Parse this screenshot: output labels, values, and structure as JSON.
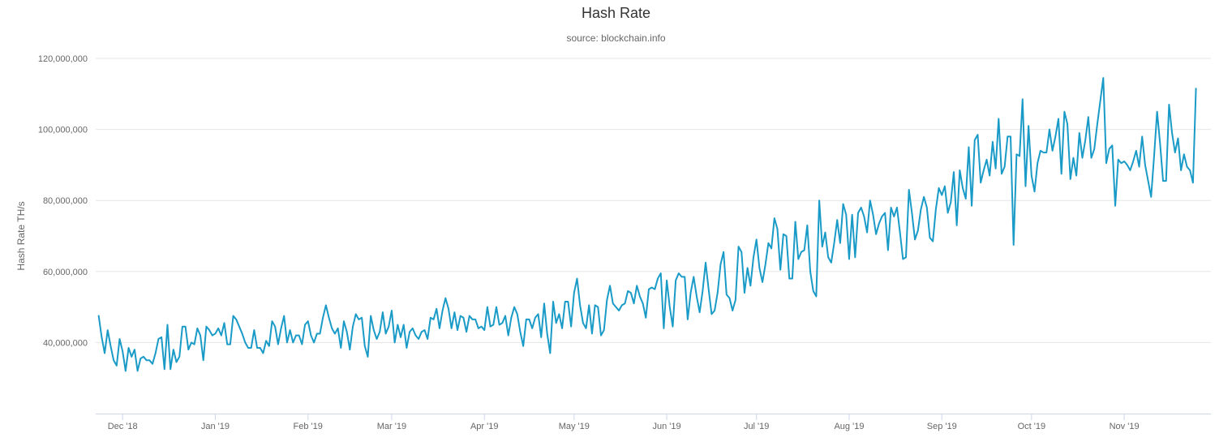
{
  "chart_data": {
    "type": "line",
    "title": "Hash Rate",
    "subtitle": "source: blockchain.info",
    "ylabel": "Hash Rate TH/s",
    "xlabel": "",
    "ylim": [
      20000000,
      120000000
    ],
    "y_ticks": [
      {
        "value": 40000000,
        "label": "40,000,000"
      },
      {
        "value": 60000000,
        "label": "60,000,000"
      },
      {
        "value": 80000000,
        "label": "80,000,000"
      },
      {
        "value": 100000000,
        "label": "100,000,000"
      },
      {
        "value": 120000000,
        "label": "120,000,000"
      }
    ],
    "x_ticks": [
      {
        "date": "2018-12-01",
        "label": "Dec '18"
      },
      {
        "date": "2019-01-01",
        "label": "Jan '19"
      },
      {
        "date": "2019-02-01",
        "label": "Feb '19"
      },
      {
        "date": "2019-03-01",
        "label": "Mar '19"
      },
      {
        "date": "2019-04-01",
        "label": "Apr '19"
      },
      {
        "date": "2019-05-01",
        "label": "May '19"
      },
      {
        "date": "2019-06-01",
        "label": "Jun '19"
      },
      {
        "date": "2019-07-01",
        "label": "Jul '19"
      },
      {
        "date": "2019-08-01",
        "label": "Aug '19"
      },
      {
        "date": "2019-09-01",
        "label": "Sep '19"
      },
      {
        "date": "2019-10-01",
        "label": "Oct '19"
      },
      {
        "date": "2019-11-01",
        "label": "Nov '19"
      }
    ],
    "xlim": [
      "2018-11-22",
      "2019-11-30"
    ],
    "grid": true,
    "legend": "none",
    "colors": {
      "line": "#1a9bc7",
      "grid": "#e6e6e6",
      "axis": "#ccd6eb"
    },
    "series": [
      {
        "start_date": "2018-11-23",
        "values": [
          47.5,
          41.5,
          37.0,
          43.5,
          39.0,
          35.0,
          33.5,
          41.0,
          37.5,
          32.0,
          38.5,
          36.0,
          38.0,
          32.0,
          35.5,
          36.0,
          35.0,
          35.0,
          34.0,
          37.0,
          41.0,
          41.5,
          32.5,
          45.0,
          32.5,
          38.0,
          34.5,
          36.0,
          44.5,
          44.5,
          38.0,
          40.0,
          39.5,
          44.0,
          42.0,
          35.0,
          44.5,
          43.5,
          42.0,
          42.5,
          44.0,
          42.0,
          45.5,
          39.5,
          39.5,
          47.5,
          46.5,
          44.5,
          42.5,
          40.0,
          38.5,
          38.5,
          43.5,
          38.5,
          38.5,
          37.0,
          40.5,
          39.0,
          46.0,
          44.5,
          39.5,
          44.0,
          47.5,
          40.0,
          43.5,
          40.0,
          42.0,
          42.0,
          39.5,
          45.0,
          46.0,
          42.0,
          40.0,
          42.5,
          42.5,
          47.0,
          50.5,
          47.0,
          44.0,
          42.5,
          44.0,
          38.5,
          46.0,
          43.0,
          38.0,
          44.5,
          48.0,
          46.5,
          47.0,
          39.0,
          36.0,
          47.5,
          43.5,
          41.0,
          43.0,
          48.5,
          42.5,
          44.5,
          49.0,
          40.0,
          45.0,
          41.5,
          45.0,
          38.5,
          43.0,
          44.0,
          42.0,
          41.0,
          43.0,
          43.5,
          41.0,
          47.0,
          46.5,
          49.5,
          44.0,
          49.0,
          52.5,
          49.5,
          44.0,
          48.5,
          43.5,
          47.5,
          47.0,
          43.0,
          47.5,
          46.5,
          46.5,
          44.0,
          44.5,
          43.5,
          50.0,
          44.5,
          45.0,
          50.0,
          45.0,
          45.5,
          47.5,
          42.0,
          47.0,
          50.0,
          48.0,
          43.0,
          39.0,
          46.5,
          46.5,
          44.0,
          47.0,
          48.0,
          41.5,
          51.0,
          42.5,
          37.0,
          51.5,
          45.5,
          48.0,
          44.0,
          51.5,
          51.5,
          44.5,
          54.0,
          58.0,
          50.5,
          45.5,
          44.0,
          50.5,
          42.5,
          50.5,
          50.0,
          42.0,
          43.5,
          52.0,
          56.0,
          51.0,
          50.0,
          49.0,
          50.5,
          51.0,
          54.5,
          54.0,
          51.0,
          56.0,
          53.0,
          51.0,
          47.0,
          55.0,
          55.5,
          55.0,
          58.0,
          59.5,
          44.0,
          57.5,
          50.0,
          44.5,
          57.5,
          59.5,
          58.5,
          58.5,
          46.5,
          54.0,
          58.5,
          53.0,
          48.5,
          54.5,
          62.5,
          55.0,
          48.0,
          49.0,
          54.0,
          62.0,
          65.5,
          53.5,
          52.5,
          49.0,
          52.0,
          67.0,
          65.5,
          54.0,
          61.0,
          56.0,
          64.0,
          69.0,
          61.0,
          57.0,
          62.0,
          68.0,
          66.5,
          75.0,
          72.0,
          60.5,
          70.5,
          70.0,
          58.0,
          58.0,
          74.0,
          63.5,
          65.5,
          66.0,
          73.0,
          60.0,
          54.5,
          53.0,
          80.0,
          67.0,
          71.0,
          64.0,
          62.5,
          68.0,
          74.5,
          68.0,
          79.0,
          76.0,
          63.5,
          76.0,
          64.0,
          76.5,
          78.0,
          75.5,
          71.0,
          80.0,
          76.0,
          70.5,
          73.5,
          75.5,
          76.5,
          66.0,
          78.0,
          75.5,
          78.0,
          71.0,
          63.5,
          64.0,
          83.0,
          76.5,
          69.0,
          71.5,
          77.5,
          81.0,
          78.0,
          69.5,
          68.5,
          77.5,
          83.5,
          81.5,
          84.0,
          76.5,
          79.5,
          88.0,
          73.0,
          88.5,
          83.5,
          80.5,
          95.0,
          78.5,
          97.0,
          98.5,
          85.0,
          88.5,
          91.5,
          87.0,
          96.5,
          89.0,
          103.0,
          87.5,
          89.5,
          98.0,
          98.0,
          67.5,
          93.0,
          92.5,
          108.5,
          84.0,
          101.0,
          87.0,
          82.5,
          90.5,
          94.0,
          93.5,
          93.5,
          100.0,
          94.0,
          98.0,
          103.0,
          87.5,
          105.0,
          101.5,
          86.0,
          92.0,
          87.0,
          99.0,
          92.0,
          97.0,
          103.5,
          92.0,
          94.5,
          101.5,
          108.0,
          114.5,
          90.5,
          94.5,
          95.5,
          78.5,
          91.5,
          90.5,
          91.0,
          90.0,
          88.5,
          91.0,
          94.0,
          89.5,
          98.0,
          90.0,
          85.5,
          81.0,
          92.5,
          105.0,
          96.0,
          85.5,
          85.5,
          107.0,
          99.0,
          93.5,
          97.5,
          88.5,
          93.0,
          89.5,
          88.5,
          85.0,
          111.5
        ],
        "value_unit": "million TH/s"
      }
    ]
  }
}
